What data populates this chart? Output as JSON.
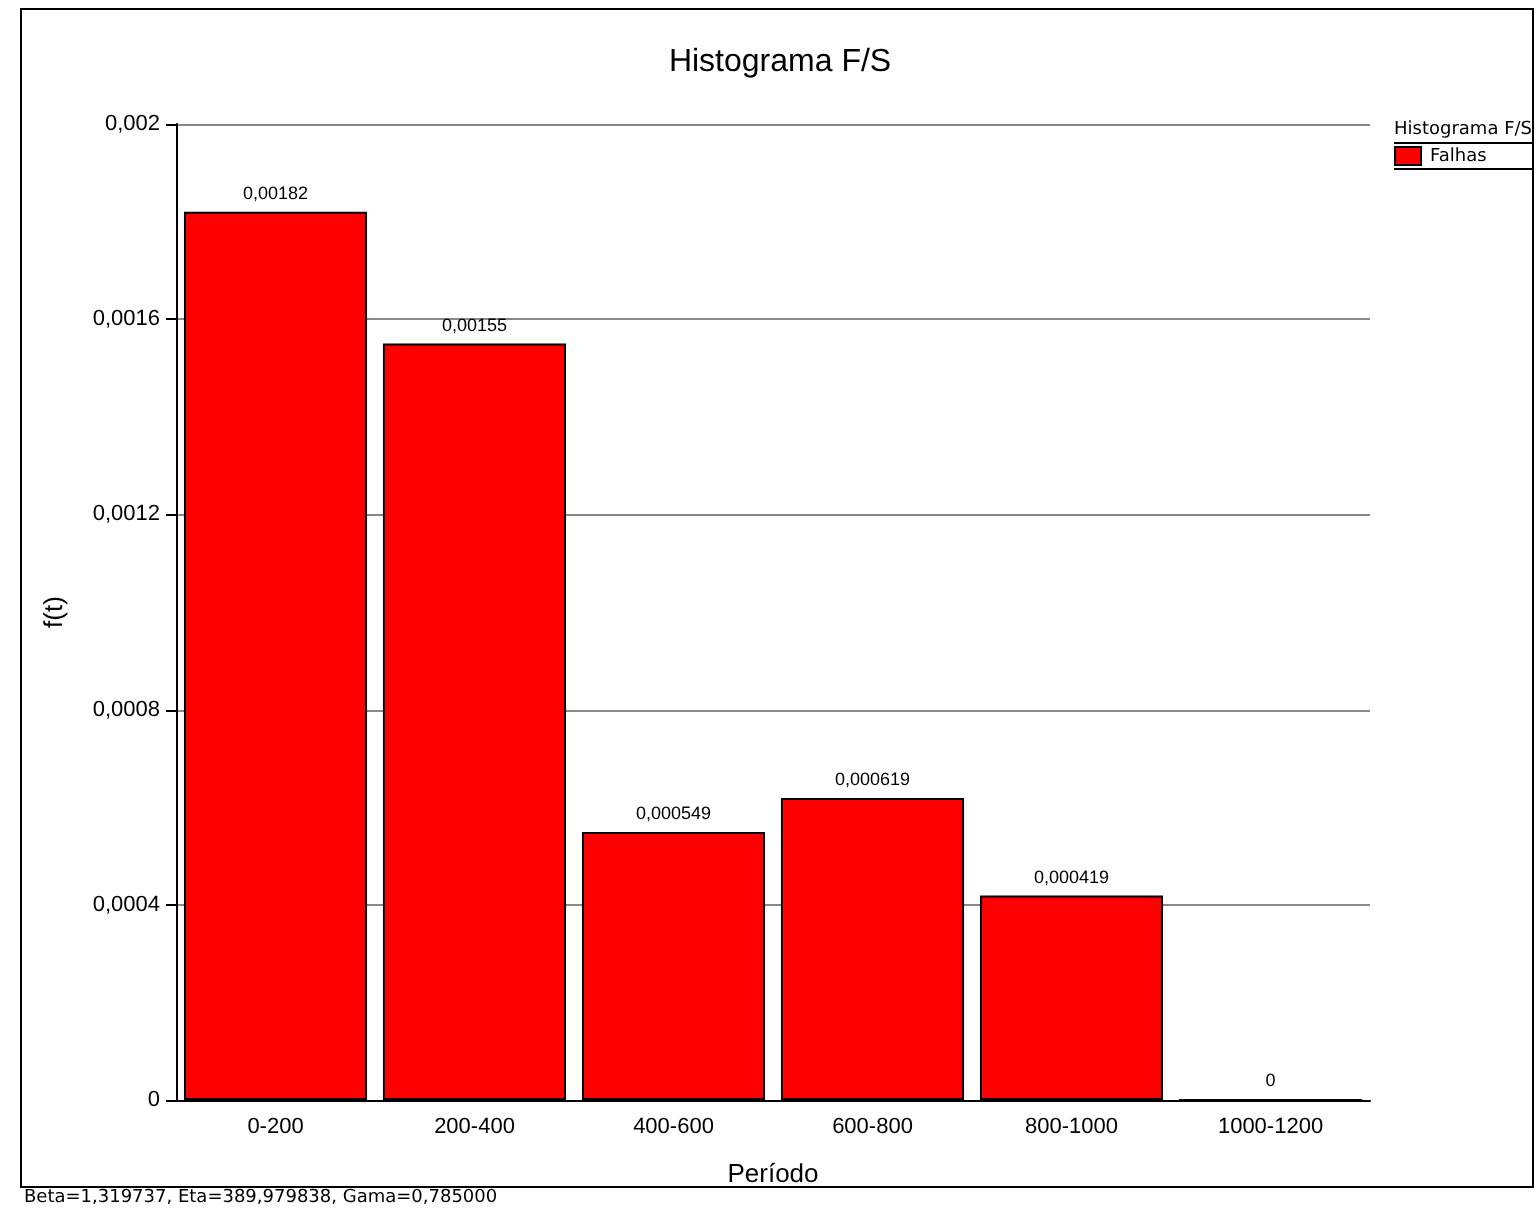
{
  "chart_data": {
    "type": "bar",
    "title": "Histograma F/S",
    "xlabel": "Período",
    "ylabel": "f(t)",
    "legend_title": "Histograma F/S",
    "categories": [
      "0-200",
      "200-400",
      "400-600",
      "600-800",
      "800-1000",
      "1000-1200"
    ],
    "series": [
      {
        "name": "Falhas",
        "color": "#ff0000",
        "values": [
          0.00182,
          0.00155,
          0.000549,
          0.000619,
          0.000419,
          0
        ],
        "value_labels": [
          "0,00182",
          "0,00155",
          "0,000549",
          "0,000619",
          "0,000419",
          "0"
        ]
      }
    ],
    "ylim": [
      0,
      0.002
    ],
    "yticks": [
      {
        "value": 0,
        "label": "0"
      },
      {
        "value": 0.0004,
        "label": "0,0004"
      },
      {
        "value": 0.0008,
        "label": "0,0008"
      },
      {
        "value": 0.0012,
        "label": "0,0012"
      },
      {
        "value": 0.0016,
        "label": "0,0016"
      },
      {
        "value": 0.002,
        "label": "0,002"
      }
    ],
    "grid": "y",
    "legend": "top right",
    "annotations": [
      "Beta=1,319737, Eta=389,979838, Gama=0,785000"
    ]
  }
}
